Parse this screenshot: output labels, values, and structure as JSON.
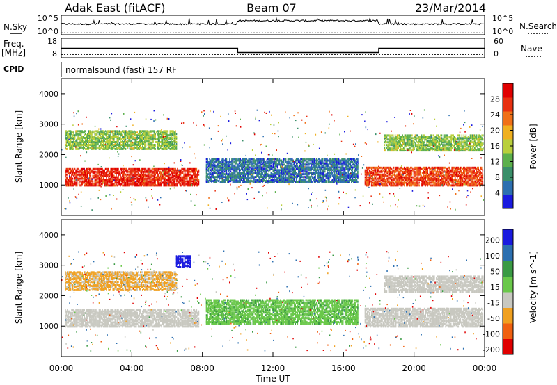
{
  "header": {
    "site": "Adak East (fitACF)",
    "beam": "Beam 07",
    "date": "23/Mar/2014"
  },
  "labels": {
    "nsky": "N.Sky",
    "nsearch": "N.Search",
    "freq": "Freq.",
    "mhz": "[MHz]",
    "nave": "Nave",
    "cpid": "CPID",
    "program": "normalsound (fast) 157 RF",
    "xaxis": "Time UT",
    "yaxis": "Slant Range [km]"
  },
  "colors": {
    "power": [
      "#1a1adf",
      "#2c6fb0",
      "#3a8f6a",
      "#5cb04c",
      "#b9cf3c",
      "#f0b020",
      "#f07018",
      "#e83010",
      "#e00000"
    ],
    "velocity": [
      "#e00000",
      "#f06010",
      "#f0a020",
      "#c8c8c0",
      "#6ac84a",
      "#3a9a44",
      "#2c6fb0",
      "#1a1adf"
    ]
  },
  "chart_data": [
    {
      "type": "line",
      "name": "noise",
      "title": "Adak East (fitACF) Beam 07 23/Mar/2014",
      "ylabel_left": "N.Sky",
      "ylabel_right": "N.Search",
      "yticks_left": [
        "10^5",
        "10^0"
      ],
      "yticks_right": [
        "10^5",
        "10^0"
      ],
      "xlim": [
        0,
        24
      ],
      "sky_level": [
        [
          0,
          0.55
        ],
        [
          10,
          0.55
        ],
        [
          10,
          0.72
        ],
        [
          18,
          0.72
        ],
        [
          18,
          0.55
        ],
        [
          24,
          0.45
        ]
      ],
      "search_level": 0.1
    },
    {
      "type": "line",
      "name": "frequency",
      "ylabel_left": "Freq. [MHz]",
      "ylabel_right": "Nave",
      "yticks_left": [
        18,
        8
      ],
      "yticks_right": [
        60,
        0
      ],
      "xlim": [
        0,
        24
      ],
      "series": [
        {
          "name": "Freq.",
          "points": [
            [
              0,
              12.8
            ],
            [
              10,
              12.8
            ],
            [
              10,
              10.7
            ],
            [
              18,
              10.7
            ],
            [
              18,
              12.8
            ],
            [
              24,
              12.8
            ]
          ]
        },
        {
          "name": "Nave",
          "points": [
            [
              0,
              10
            ],
            [
              24,
              10
            ]
          ]
        }
      ]
    },
    {
      "type": "heatmap",
      "name": "power",
      "quantity": "Power [dB]",
      "ylabel": "Slant Range [km]",
      "xlim": [
        0,
        24
      ],
      "ylim": [
        0,
        4500
      ],
      "yticks": [
        1000,
        2000,
        3000,
        4000
      ],
      "colorbar_ticks": [
        4,
        8,
        12,
        16,
        20,
        24,
        28
      ],
      "colorbar_range": [
        0,
        32
      ],
      "echo_bands": [
        {
          "x": [
            0.2,
            7.8
          ],
          "range": [
            950,
            1500
          ],
          "level": 28
        },
        {
          "x": [
            0.2,
            6.5
          ],
          "range": [
            2150,
            2750
          ],
          "level": 14
        },
        {
          "x": [
            8.2,
            16.8
          ],
          "range": [
            1050,
            1850
          ],
          "level": 6
        },
        {
          "x": [
            17.2,
            23.9
          ],
          "range": [
            950,
            1550
          ],
          "level": 26
        },
        {
          "x": [
            18.3,
            23.9
          ],
          "range": [
            2100,
            2600
          ],
          "level": 14
        }
      ]
    },
    {
      "type": "heatmap",
      "name": "velocity",
      "quantity": "Velocity [m s^-1]",
      "ylabel": "Slant Range [km]",
      "xlabel": "Time UT",
      "xlim": [
        0,
        24
      ],
      "ylim": [
        0,
        4500
      ],
      "yticks": [
        1000,
        2000,
        3000,
        4000
      ],
      "xticks": [
        "00:00",
        "04:00",
        "08:00",
        "12:00",
        "16:00",
        "20:00",
        "00:00"
      ],
      "colorbar_ticks": [
        200,
        100,
        50,
        15,
        -15,
        -50,
        -100,
        -200
      ],
      "echo_bands": [
        {
          "x": [
            0.2,
            7.8
          ],
          "range": [
            950,
            1500
          ],
          "level": 0
        },
        {
          "x": [
            0.2,
            6.5
          ],
          "range": [
            2150,
            2750
          ],
          "level": -20
        },
        {
          "x": [
            6.5,
            7.3
          ],
          "range": [
            2900,
            3300
          ],
          "level": 250
        },
        {
          "x": [
            8.2,
            16.8
          ],
          "range": [
            1050,
            1850
          ],
          "level": 40
        },
        {
          "x": [
            17.2,
            23.9
          ],
          "range": [
            950,
            1550
          ],
          "level": 0
        },
        {
          "x": [
            18.3,
            23.9
          ],
          "range": [
            2100,
            2600
          ],
          "level": 0
        }
      ]
    }
  ]
}
